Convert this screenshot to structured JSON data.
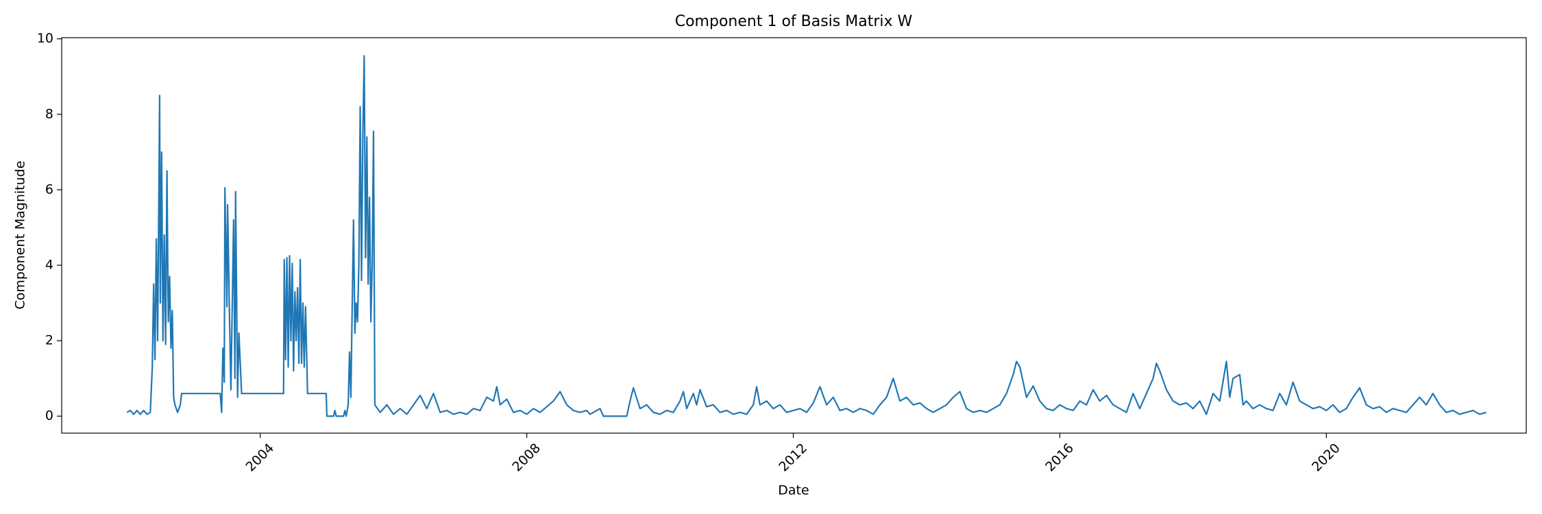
{
  "chart_data": {
    "type": "line",
    "title": "Component 1 of Basis Matrix W",
    "x_label": "Date",
    "y_label": "Component Magnitude",
    "xlim": [
      2001.02,
      2023.0
    ],
    "xticks": [
      2004,
      2008,
      2012,
      2016,
      2020
    ],
    "ylim": [
      -0.45,
      10.03
    ],
    "yticks": [
      0,
      2,
      4,
      6,
      8,
      10
    ],
    "grid": false,
    "color": "#1f77b4",
    "x": [
      2002.0,
      2002.05,
      2002.1,
      2002.15,
      2002.2,
      2002.25,
      2002.3,
      2002.35,
      2002.38,
      2002.4,
      2002.42,
      2002.44,
      2002.46,
      2002.48,
      2002.49,
      2002.5,
      2002.52,
      2002.54,
      2002.56,
      2002.58,
      2002.6,
      2002.62,
      2002.64,
      2002.66,
      2002.68,
      2002.7,
      2002.72,
      2002.76,
      2002.8,
      2002.82,
      2003.4,
      2003.42,
      2003.44,
      2003.46,
      2003.47,
      2003.5,
      2003.51,
      2003.54,
      2003.56,
      2003.6,
      2003.62,
      2003.63,
      2003.66,
      2003.68,
      2003.72,
      2004.35,
      2004.36,
      2004.38,
      2004.4,
      2004.42,
      2004.44,
      2004.46,
      2004.48,
      2004.5,
      2004.52,
      2004.54,
      2004.56,
      2004.58,
      2004.6,
      2004.62,
      2004.64,
      2004.66,
      2004.68,
      2004.71,
      2004.99,
      2005.0,
      2005.1,
      2005.12,
      2005.14,
      2005.25,
      2005.27,
      2005.29,
      2005.32,
      2005.34,
      2005.36,
      2005.38,
      2005.4,
      2005.42,
      2005.44,
      2005.46,
      2005.48,
      2005.5,
      2005.52,
      2005.54,
      2005.56,
      2005.58,
      2005.6,
      2005.62,
      2005.64,
      2005.66,
      2005.68,
      2005.7,
      2005.72,
      2005.8,
      2005.9,
      2006.0,
      2006.1,
      2006.2,
      2006.3,
      2006.4,
      2006.5,
      2006.6,
      2006.7,
      2006.8,
      2006.9,
      2007.0,
      2007.1,
      2007.2,
      2007.3,
      2007.4,
      2007.5,
      2007.55,
      2007.6,
      2007.7,
      2007.8,
      2007.9,
      2008.0,
      2008.1,
      2008.2,
      2008.3,
      2008.4,
      2008.5,
      2008.6,
      2008.7,
      2008.8,
      2008.9,
      2008.95,
      2009.0,
      2009.1,
      2009.15,
      2009.5,
      2009.55,
      2009.6,
      2009.7,
      2009.8,
      2009.9,
      2010.0,
      2010.1,
      2010.2,
      2010.3,
      2010.35,
      2010.4,
      2010.5,
      2010.55,
      2010.6,
      2010.7,
      2010.8,
      2010.9,
      2011.0,
      2011.1,
      2011.2,
      2011.3,
      2011.4,
      2011.45,
      2011.5,
      2011.6,
      2011.7,
      2011.8,
      2011.9,
      2012.0,
      2012.1,
      2012.2,
      2012.3,
      2012.4,
      2012.5,
      2012.6,
      2012.7,
      2012.8,
      2012.9,
      2013.0,
      2013.1,
      2013.2,
      2013.3,
      2013.4,
      2013.5,
      2013.6,
      2013.7,
      2013.8,
      2013.9,
      2014.0,
      2014.1,
      2014.2,
      2014.3,
      2014.4,
      2014.5,
      2014.6,
      2014.7,
      2014.8,
      2014.9,
      2015.0,
      2015.1,
      2015.2,
      2015.3,
      2015.35,
      2015.4,
      2015.5,
      2015.6,
      2015.7,
      2015.8,
      2015.9,
      2016.0,
      2016.1,
      2016.2,
      2016.3,
      2016.4,
      2016.5,
      2016.6,
      2016.7,
      2016.8,
      2016.9,
      2017.0,
      2017.1,
      2017.2,
      2017.3,
      2017.4,
      2017.45,
      2017.5,
      2017.6,
      2017.7,
      2017.8,
      2017.9,
      2018.0,
      2018.1,
      2018.2,
      2018.3,
      2018.4,
      2018.5,
      2018.55,
      2018.6,
      2018.7,
      2018.75,
      2018.8,
      2018.9,
      2019.0,
      2019.1,
      2019.2,
      2019.3,
      2019.4,
      2019.5,
      2019.6,
      2019.7,
      2019.8,
      2019.9,
      2020.0,
      2020.1,
      2020.2,
      2020.3,
      2020.4,
      2020.5,
      2020.6,
      2020.7,
      2020.8,
      2020.9,
      2021.0,
      2021.1,
      2021.2,
      2021.3,
      2021.4,
      2021.5,
      2021.6,
      2021.7,
      2021.8,
      2021.9,
      2022.0,
      2022.1,
      2022.2,
      2022.3,
      2022.4
    ],
    "values": [
      0.1,
      0.15,
      0.05,
      0.15,
      0.05,
      0.15,
      0.05,
      0.1,
      1.3,
      3.5,
      1.5,
      4.7,
      2.0,
      6.2,
      8.5,
      3.0,
      7.0,
      2.0,
      4.8,
      1.9,
      6.5,
      2.5,
      3.7,
      1.8,
      2.8,
      0.5,
      0.3,
      0.1,
      0.3,
      0.6,
      0.6,
      0.1,
      1.8,
      0.9,
      6.05,
      2.9,
      5.6,
      2.5,
      0.7,
      5.2,
      1.0,
      5.95,
      0.5,
      2.2,
      0.6,
      0.6,
      4.15,
      1.5,
      4.2,
      1.3,
      4.25,
      2.0,
      4.05,
      1.2,
      3.3,
      2.0,
      3.4,
      1.4,
      4.15,
      1.4,
      3.0,
      1.3,
      2.9,
      0.6,
      0.6,
      0,
      0,
      0.15,
      0,
      0,
      0.15,
      0,
      0.3,
      1.7,
      0.5,
      2.9,
      5.2,
      2.2,
      3.0,
      2.5,
      4.0,
      8.2,
      3.6,
      7.5,
      9.55,
      4.2,
      7.4,
      3.5,
      5.8,
      2.5,
      4.0,
      7.55,
      0.3,
      0.1,
      0.3,
      0.05,
      0.2,
      0.05,
      0.3,
      0.55,
      0.2,
      0.6,
      0.1,
      0.15,
      0.05,
      0.1,
      0.05,
      0.2,
      0.15,
      0.5,
      0.4,
      0.78,
      0.3,
      0.45,
      0.1,
      0.15,
      0.05,
      0.2,
      0.1,
      0.25,
      0.4,
      0.65,
      0.3,
      0.15,
      0.1,
      0.15,
      0.05,
      0.1,
      0.2,
      0,
      0,
      0.4,
      0.75,
      0.2,
      0.3,
      0.1,
      0.05,
      0.15,
      0.1,
      0.4,
      0.65,
      0.2,
      0.6,
      0.3,
      0.7,
      0.25,
      0.3,
      0.1,
      0.15,
      0.05,
      0.1,
      0.05,
      0.3,
      0.78,
      0.3,
      0.4,
      0.2,
      0.3,
      0.1,
      0.15,
      0.2,
      0.1,
      0.35,
      0.78,
      0.3,
      0.5,
      0.15,
      0.2,
      0.1,
      0.2,
      0.15,
      0.05,
      0.3,
      0.5,
      1.0,
      0.4,
      0.5,
      0.3,
      0.35,
      0.2,
      0.1,
      0.2,
      0.3,
      0.5,
      0.65,
      0.2,
      0.1,
      0.15,
      0.1,
      0.2,
      0.3,
      0.6,
      1.1,
      1.45,
      1.3,
      0.5,
      0.8,
      0.4,
      0.2,
      0.15,
      0.3,
      0.2,
      0.15,
      0.4,
      0.3,
      0.7,
      0.4,
      0.55,
      0.3,
      0.2,
      0.1,
      0.6,
      0.2,
      0.6,
      1.0,
      1.4,
      1.2,
      0.7,
      0.4,
      0.3,
      0.35,
      0.2,
      0.4,
      0.05,
      0.6,
      0.4,
      1.45,
      0.5,
      1.0,
      1.1,
      0.3,
      0.4,
      0.2,
      0.3,
      0.2,
      0.15,
      0.6,
      0.3,
      0.9,
      0.4,
      0.3,
      0.2,
      0.25,
      0.15,
      0.3,
      0.1,
      0.2,
      0.5,
      0.75,
      0.3,
      0.2,
      0.25,
      0.1,
      0.2,
      0.15,
      0.1,
      0.3,
      0.5,
      0.3,
      0.6,
      0.3,
      0.1,
      0.15,
      0.05,
      0.1,
      0.15,
      0.05,
      0.1
    ]
  }
}
